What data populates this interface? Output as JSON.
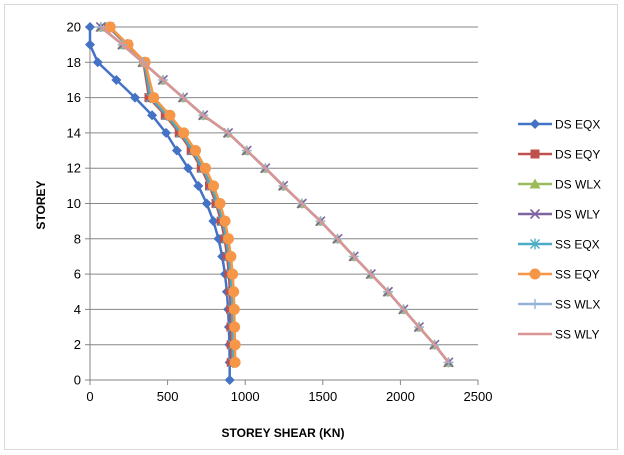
{
  "chart_data": {
    "type": "scatter",
    "title": "",
    "xlabel": "STOREY SHEAR (KN)",
    "ylabel": "STOREY",
    "xlim": [
      0,
      2500
    ],
    "ylim": [
      0,
      20
    ],
    "xticks": [
      "0",
      "500",
      "1000",
      "1500",
      "2000",
      "2500"
    ],
    "yticks": [
      "0",
      "2",
      "4",
      "6",
      "8",
      "10",
      "12",
      "14",
      "16",
      "18",
      "20"
    ],
    "grid": "horizontal",
    "legend_position": "right",
    "series": [
      {
        "name": "DS EQX",
        "color": "#4472C4",
        "marker": "diamond",
        "x": [
          900,
          900,
          898,
          895,
          890,
          882,
          870,
          852,
          828,
          795,
          752,
          698,
          632,
          560,
          490,
          400,
          290,
          170,
          50,
          0,
          0
        ],
        "y": [
          0,
          1,
          2,
          3,
          4,
          5,
          6,
          7,
          8,
          9,
          10,
          11,
          12,
          13,
          14,
          15,
          16,
          17,
          18,
          19,
          20
        ]
      },
      {
        "name": "DS EQY",
        "color": "#C0504D",
        "marker": "square",
        "x": [
          910,
          910,
          908,
          906,
          902,
          895,
          884,
          868,
          845,
          812,
          770,
          717,
          652,
          575,
          485,
          380,
          345,
          235,
          120
        ],
        "y": [
          1,
          2,
          3,
          4,
          5,
          6,
          7,
          8,
          9,
          10,
          11,
          12,
          13,
          14,
          15,
          16,
          18,
          19,
          20
        ]
      },
      {
        "name": "DS WLX",
        "color": "#9BBB59",
        "marker": "triangle",
        "x": [
          2310,
          2220,
          2120,
          2020,
          1920,
          1810,
          1700,
          1595,
          1485,
          1365,
          1245,
          1130,
          1010,
          890,
          730,
          600,
          470,
          340,
          210,
          70
        ],
        "y": [
          1,
          2,
          3,
          4,
          5,
          6,
          7,
          8,
          9,
          10,
          11,
          12,
          13,
          14,
          15,
          16,
          17,
          18,
          19,
          20
        ]
      },
      {
        "name": "DS WLY",
        "color": "#8064A2",
        "marker": "x",
        "x": [
          2310,
          2220,
          2120,
          2020,
          1920,
          1810,
          1700,
          1595,
          1485,
          1365,
          1245,
          1130,
          1010,
          890,
          730,
          600,
          470,
          340,
          210,
          70
        ],
        "y": [
          1,
          2,
          3,
          4,
          5,
          6,
          7,
          8,
          9,
          10,
          11,
          12,
          13,
          14,
          15,
          16,
          17,
          18,
          19,
          20
        ]
      },
      {
        "name": "SS EQX",
        "color": "#4BACC6",
        "marker": "star",
        "x": [
          920,
          920,
          918,
          916,
          912,
          905,
          894,
          878,
          855,
          822,
          780,
          727,
          662,
          585,
          495,
          390,
          350,
          240,
          125
        ],
        "y": [
          1,
          2,
          3,
          4,
          5,
          6,
          7,
          8,
          9,
          10,
          11,
          12,
          13,
          14,
          15,
          16,
          18,
          19,
          20
        ]
      },
      {
        "name": "SS EQY",
        "color": "#F79646",
        "marker": "circle",
        "x": [
          935,
          935,
          932,
          930,
          926,
          919,
          908,
          892,
          870,
          838,
          796,
          744,
          680,
          604,
          515,
          411,
          355,
          245,
          130
        ],
        "y": [
          1,
          2,
          3,
          4,
          5,
          6,
          7,
          8,
          9,
          10,
          11,
          12,
          13,
          14,
          15,
          16,
          18,
          19,
          20
        ]
      },
      {
        "name": "SS WLX",
        "color": "#95B3D7",
        "marker": "plus",
        "x": [
          2310,
          2220,
          2120,
          2020,
          1920,
          1810,
          1700,
          1595,
          1485,
          1365,
          1245,
          1130,
          1010,
          890,
          730,
          600,
          470,
          340,
          210,
          70
        ],
        "y": [
          1,
          2,
          3,
          4,
          5,
          6,
          7,
          8,
          9,
          10,
          11,
          12,
          13,
          14,
          15,
          16,
          17,
          18,
          19,
          20
        ]
      },
      {
        "name": "SS WLY",
        "color": "#D99694",
        "marker": "none",
        "x": [
          2310,
          2220,
          2120,
          2020,
          1920,
          1810,
          1700,
          1595,
          1485,
          1365,
          1245,
          1130,
          1010,
          890,
          730,
          600,
          470,
          340,
          210,
          70
        ],
        "y": [
          1,
          2,
          3,
          4,
          5,
          6,
          7,
          8,
          9,
          10,
          11,
          12,
          13,
          14,
          15,
          16,
          17,
          18,
          19,
          20
        ]
      }
    ]
  }
}
